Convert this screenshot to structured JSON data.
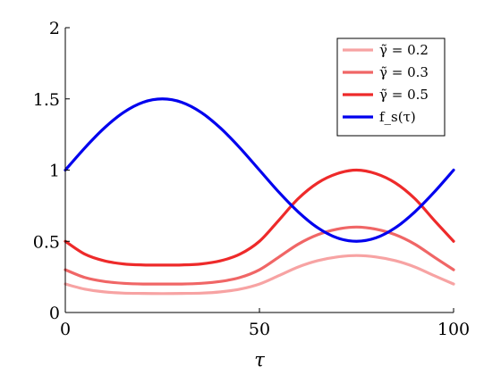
{
  "chart_data": {
    "type": "line",
    "title": "",
    "xlabel": "τ",
    "ylabel": "",
    "xlim": [
      0,
      100
    ],
    "ylim": [
      0,
      2
    ],
    "xticks": [
      0,
      50,
      100
    ],
    "yticks": [
      0,
      0.5,
      1,
      1.5,
      2
    ],
    "xtick_labels": [
      "0",
      "50",
      "100"
    ],
    "ytick_labels": [
      "0",
      "0.5",
      "1",
      "1.5",
      "2"
    ],
    "grid": false,
    "legend_position": "top-right",
    "x": [
      0,
      5,
      10,
      15,
      20,
      25,
      30,
      35,
      40,
      45,
      50,
      55,
      60,
      65,
      70,
      75,
      80,
      85,
      90,
      95,
      100
    ],
    "series": [
      {
        "name": "γ̃ = 0.2",
        "color": "#f7a3a3",
        "values": [
          0.2,
          0.164,
          0.145,
          0.136,
          0.134,
          0.133,
          0.134,
          0.136,
          0.145,
          0.164,
          0.2,
          0.259,
          0.32,
          0.364,
          0.39,
          0.4,
          0.39,
          0.364,
          0.32,
          0.259,
          0.2
        ]
      },
      {
        "name": "γ̃ = 0.3",
        "color": "#f06666",
        "values": [
          0.3,
          0.246,
          0.218,
          0.205,
          0.2,
          0.2,
          0.2,
          0.205,
          0.218,
          0.246,
          0.3,
          0.389,
          0.48,
          0.546,
          0.585,
          0.6,
          0.585,
          0.546,
          0.48,
          0.389,
          0.3
        ]
      },
      {
        "name": "γ̃ = 0.5",
        "color": "#ee2a2a",
        "values": [
          0.5,
          0.41,
          0.363,
          0.341,
          0.334,
          0.333,
          0.334,
          0.341,
          0.363,
          0.41,
          0.5,
          0.648,
          0.8,
          0.91,
          0.975,
          1.0,
          0.975,
          0.91,
          0.8,
          0.648,
          0.5
        ]
      },
      {
        "name": "f_s(τ)",
        "color": "#0000ee",
        "values": [
          1.0,
          1.155,
          1.294,
          1.405,
          1.476,
          1.5,
          1.476,
          1.405,
          1.294,
          1.155,
          1.0,
          0.845,
          0.706,
          0.595,
          0.524,
          0.5,
          0.524,
          0.595,
          0.706,
          0.845,
          1.0
        ]
      }
    ]
  }
}
